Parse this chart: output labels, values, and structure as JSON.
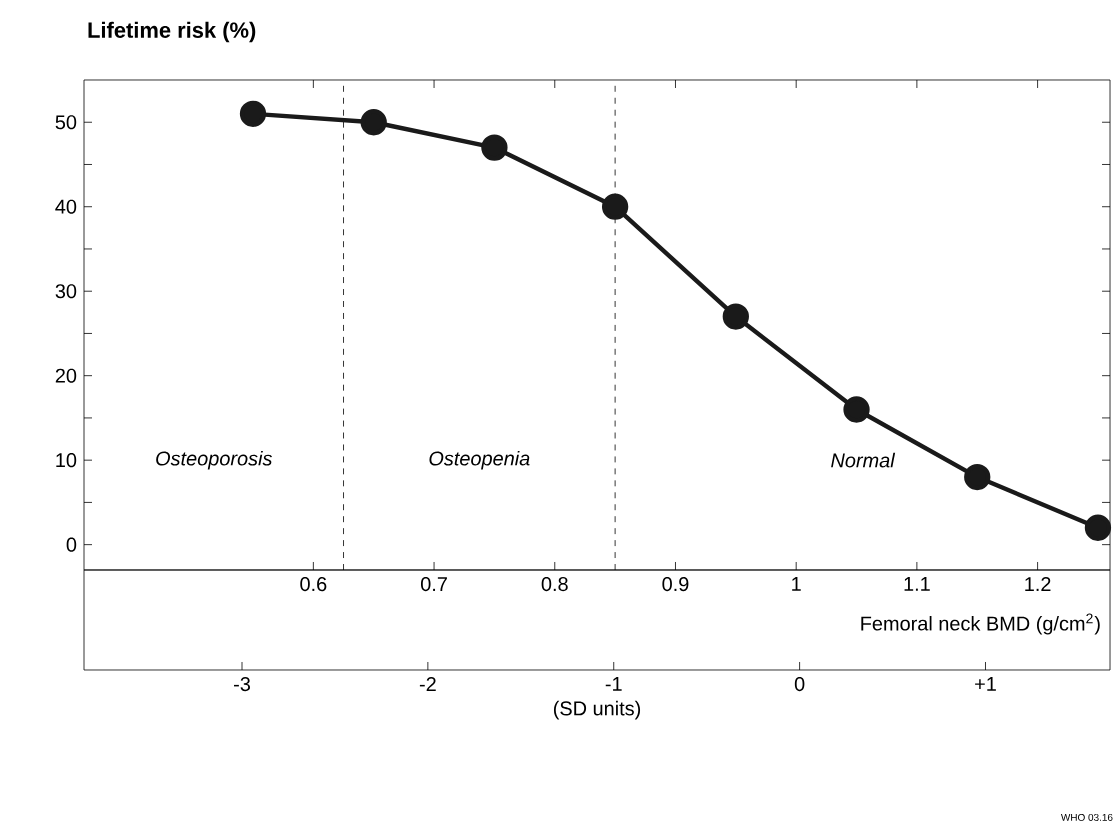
{
  "chart_data": {
    "type": "line",
    "ylabel": "Lifetime risk (%)",
    "xlabel": "Femoral neck BMD (g/cm$^{2}$)",
    "x": [
      0.55,
      0.65,
      0.75,
      0.85,
      0.95,
      1.05,
      1.15,
      1.25
    ],
    "series": [
      {
        "color": "#1a1a1a",
        "values": [
          51,
          50,
          47,
          40,
          27,
          16,
          8,
          2
        ]
      }
    ],
    "marker": "circle",
    "line_style": "solid",
    "xlim": [
      0.41,
      1.26
    ],
    "xticks": [
      0.6,
      0.7,
      0.8,
      0.9,
      1,
      1.1,
      1.2
    ],
    "ylim": [
      -3,
      55
    ],
    "yticks": [
      0,
      {
        "value": 5,
        "label": null
      },
      10,
      {
        "value": 15,
        "label": null
      },
      20,
      {
        "value": 25,
        "label": null
      },
      30,
      {
        "value": 35,
        "label": null
      },
      40,
      {
        "value": 45,
        "label": null
      },
      50
    ],
    "x2lim": [
      -3.85,
      1.67
    ],
    "x2ticks": [
      -3,
      -2,
      -1,
      0,
      {
        "value": 1,
        "label": "+1"
      }
    ],
    "x2label": "(SD units)",
    "ref_lines": [
      {
        "axis": "x",
        "value": 0.625,
        "line_style": "dashed"
      },
      {
        "axis": "x",
        "value": 0.85,
        "line_style": "dashed"
      }
    ],
    "annotations": [
      "Osteoporosis",
      "Osteopenia",
      "Normal",
      "WHO 03.16"
    ]
  }
}
